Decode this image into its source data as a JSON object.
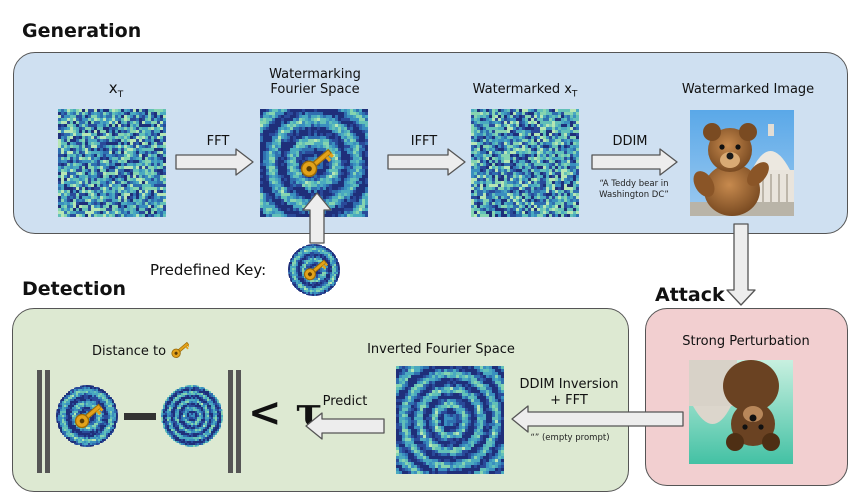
{
  "sections": {
    "generation": "Generation",
    "detection": "Detection",
    "attack": "Attack"
  },
  "generation": {
    "xt_label": "x",
    "xt_sub": "T",
    "fft_label": "FFT",
    "wm_fourier_label_1": "Watermarking",
    "wm_fourier_label_2": "Fourier Space",
    "ifft_label": "IFFT",
    "watermarked_xt_label": "Watermarked x",
    "watermarked_xt_sub": "T",
    "ddim_label": "DDIM",
    "prompt_line_1": "“A Teddy bear in",
    "prompt_line_2": "Washington DC”",
    "wm_image_label": "Watermarked Image"
  },
  "key": {
    "label": "Predefined Key:"
  },
  "attack": {
    "label": "Strong Perturbation"
  },
  "detection": {
    "inverted_label": "Inverted Fourier Space",
    "inversion_label_1": "DDIM Inversion",
    "inversion_label_2": "+ FFT",
    "empty_prompt": "“” (empty prompt)",
    "predict_label": "Predict",
    "distance_label": "Distance to",
    "threshold_symbol": "< τ"
  },
  "colors": {
    "generation_bg": "#cfe0f1",
    "detection_bg": "#dde9d2",
    "attack_bg": "#f2cfd0",
    "noise_dark": "#2a3a8c",
    "noise_light": "#9be0b4",
    "key_color": "#e0a020"
  },
  "icons": [
    "key-icon",
    "arrow-right-icon",
    "arrow-left-icon",
    "arrow-down-icon",
    "arrow-up-icon",
    "teddy-bear-photo"
  ]
}
